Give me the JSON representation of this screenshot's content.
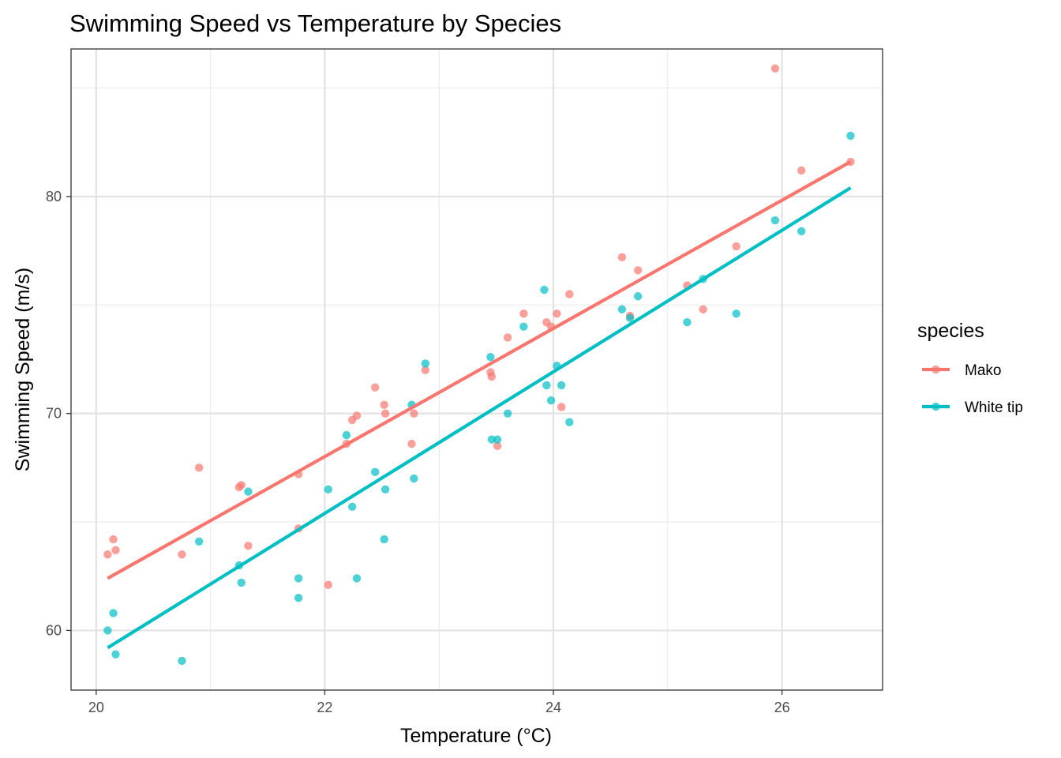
{
  "chart_data": {
    "type": "scatter",
    "title": "Swimming Speed vs Temperature by Species",
    "xlabel": "Temperature (°C)",
    "ylabel": "Swimming Speed (m/s)",
    "xlim": [
      19.78,
      26.88
    ],
    "ylim": [
      57.25,
      86.8
    ],
    "x_ticks": [
      20,
      22,
      24,
      26
    ],
    "y_ticks": [
      60,
      70,
      80
    ],
    "grid": true,
    "legend": {
      "title": "species",
      "position": "right"
    },
    "series": [
      {
        "name": "Mako",
        "color": "#F8766D",
        "points": [
          [
            20.1,
            63.5
          ],
          [
            20.15,
            64.2
          ],
          [
            20.17,
            63.7
          ],
          [
            20.75,
            63.5
          ],
          [
            20.9,
            67.5
          ],
          [
            21.25,
            66.6
          ],
          [
            21.27,
            66.7
          ],
          [
            21.33,
            63.9
          ],
          [
            21.77,
            67.2
          ],
          [
            21.77,
            64.7
          ],
          [
            22.03,
            62.1
          ],
          [
            22.19,
            68.6
          ],
          [
            22.24,
            69.7
          ],
          [
            22.28,
            69.9
          ],
          [
            22.44,
            71.2
          ],
          [
            22.52,
            70.4
          ],
          [
            22.53,
            70.0
          ],
          [
            22.76,
            68.6
          ],
          [
            22.78,
            70.0
          ],
          [
            22.88,
            72.0
          ],
          [
            23.45,
            71.9
          ],
          [
            23.46,
            71.7
          ],
          [
            23.51,
            68.5
          ],
          [
            23.6,
            73.5
          ],
          [
            23.74,
            74.6
          ],
          [
            23.94,
            74.2
          ],
          [
            23.98,
            74.0
          ],
          [
            24.03,
            74.6
          ],
          [
            24.07,
            70.3
          ],
          [
            24.14,
            75.5
          ],
          [
            24.6,
            77.2
          ],
          [
            24.67,
            74.5
          ],
          [
            24.74,
            76.6
          ],
          [
            25.17,
            75.9
          ],
          [
            25.31,
            74.8
          ],
          [
            25.6,
            77.7
          ],
          [
            25.94,
            85.9
          ],
          [
            26.17,
            81.2
          ],
          [
            26.6,
            81.6
          ]
        ],
        "fit": [
          [
            20.1,
            62.4
          ],
          [
            26.6,
            81.6
          ]
        ]
      },
      {
        "name": "White tip",
        "color": "#00BFC4",
        "points": [
          [
            20.1,
            60.0
          ],
          [
            20.15,
            60.8
          ],
          [
            20.17,
            58.9
          ],
          [
            20.75,
            58.6
          ],
          [
            20.9,
            64.1
          ],
          [
            21.25,
            63.0
          ],
          [
            21.27,
            62.2
          ],
          [
            21.33,
            66.4
          ],
          [
            21.77,
            62.4
          ],
          [
            21.77,
            61.5
          ],
          [
            22.03,
            66.5
          ],
          [
            22.19,
            69.0
          ],
          [
            22.24,
            65.7
          ],
          [
            22.28,
            62.4
          ],
          [
            22.44,
            67.3
          ],
          [
            22.52,
            64.2
          ],
          [
            22.53,
            66.5
          ],
          [
            22.76,
            70.4
          ],
          [
            22.78,
            67.0
          ],
          [
            22.88,
            72.3
          ],
          [
            23.45,
            72.6
          ],
          [
            23.46,
            68.8
          ],
          [
            23.51,
            68.8
          ],
          [
            23.6,
            70.0
          ],
          [
            23.74,
            74.0
          ],
          [
            23.92,
            75.7
          ],
          [
            23.94,
            71.3
          ],
          [
            23.98,
            70.6
          ],
          [
            24.03,
            72.2
          ],
          [
            24.07,
            71.3
          ],
          [
            24.14,
            69.6
          ],
          [
            24.6,
            74.8
          ],
          [
            24.67,
            74.4
          ],
          [
            24.74,
            75.4
          ],
          [
            25.17,
            74.2
          ],
          [
            25.31,
            76.2
          ],
          [
            25.6,
            74.6
          ],
          [
            25.94,
            78.9
          ],
          [
            26.17,
            78.4
          ],
          [
            26.6,
            82.8
          ]
        ],
        "fit": [
          [
            20.1,
            59.2
          ],
          [
            26.6,
            80.4
          ]
        ]
      }
    ]
  }
}
